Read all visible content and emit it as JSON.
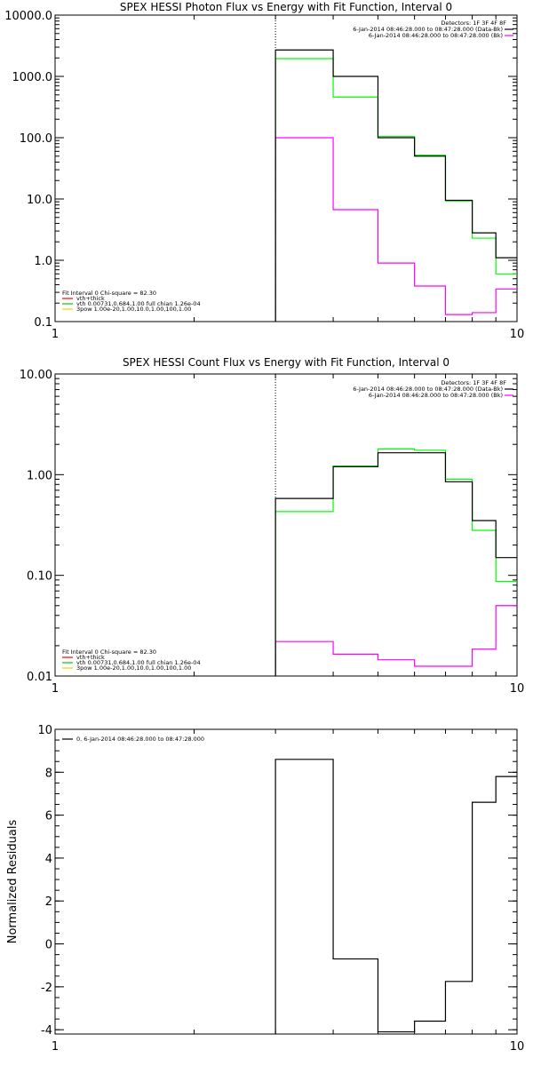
{
  "colors": {
    "data": "#000000",
    "total": "#00ff00",
    "component": "#ff00ff",
    "vth": "#00cc00",
    "thick": "#ffcc00",
    "total_legend": "#ff0000"
  },
  "chart_data": [
    {
      "type": "line",
      "step": true,
      "title": "SPEX HESSI Photon Flux vs Energy with Fit Function, Interval 0",
      "xlabel": "",
      "ylabel": "",
      "x_scale": "log",
      "y_scale": "log",
      "xlim": [
        1,
        10
      ],
      "ylim": [
        0.1,
        10000
      ],
      "x_ticks": [
        {
          "v": 1,
          "label": "1"
        },
        {
          "v": 10,
          "label": "10"
        }
      ],
      "y_ticks": [
        {
          "v": 0.1,
          "label": "0.1"
        },
        {
          "v": 1,
          "label": "1.0"
        },
        {
          "v": 10,
          "label": "10.0"
        },
        {
          "v": 100,
          "label": "100.0"
        },
        {
          "v": 1000,
          "label": "1000.0"
        },
        {
          "v": 10000,
          "label": "10000.0"
        }
      ],
      "bin_edges": [
        3,
        4,
        5,
        6,
        7,
        8,
        9,
        10
      ],
      "vline_x": 3,
      "series": [
        {
          "role": "data",
          "values": [
            2700,
            1000,
            100,
            50,
            9.5,
            2.8,
            1.1
          ]
        },
        {
          "role": "total",
          "values": [
            1950,
            460,
            105,
            52,
            9.3,
            2.3,
            0.6
          ]
        },
        {
          "role": "component",
          "values": [
            100,
            6.7,
            0.9,
            0.38,
            0.13,
            0.14,
            0.34
          ]
        }
      ],
      "header": {
        "detectors": "Detectors: 1F 3F 4F 8F",
        "line1": "6-Jan-2014 08:46:28.000 to 08:47:28.000 (Data-Bk)",
        "line2": "6-Jan-2014 08:46:28.000 to 08:47:28.000 (Bk)"
      },
      "legend": {
        "head": "Fit Interval 0   Chi-square = 82.30",
        "items": [
          {
            "role": "total_legend",
            "label": "vth+thick"
          },
          {
            "role": "vth",
            "label": "vth 0.00731,0.684,1.00  full chian 1.26e-04"
          },
          {
            "role": "thick",
            "label": "3pow 1.00e-20,1.00,10.0,1.00,100,1.00"
          }
        ]
      }
    },
    {
      "type": "line",
      "step": true,
      "title": "SPEX HESSI Count Flux vs Energy with Fit Function, Interval 0",
      "xlabel": "",
      "ylabel": "",
      "x_scale": "log",
      "y_scale": "log",
      "xlim": [
        1,
        10
      ],
      "ylim": [
        0.01,
        10
      ],
      "x_ticks": [
        {
          "v": 1,
          "label": "1"
        },
        {
          "v": 10,
          "label": "10"
        }
      ],
      "y_ticks": [
        {
          "v": 0.01,
          "label": "0.01"
        },
        {
          "v": 0.1,
          "label": "0.10"
        },
        {
          "v": 1,
          "label": "1.00"
        },
        {
          "v": 10,
          "label": "10.00"
        }
      ],
      "bin_edges": [
        3,
        4,
        5,
        6,
        7,
        8,
        9,
        10
      ],
      "vline_x": 3,
      "series": [
        {
          "role": "data",
          "values": [
            0.58,
            1.2,
            1.65,
            1.65,
            0.85,
            0.35,
            0.15
          ]
        },
        {
          "role": "total",
          "values": [
            0.43,
            1.22,
            1.8,
            1.75,
            0.9,
            0.28,
            0.087
          ]
        },
        {
          "role": "component",
          "values": [
            0.022,
            0.0165,
            0.0145,
            0.0125,
            0.0125,
            0.0185,
            0.05
          ]
        }
      ],
      "header": {
        "detectors": "Detectors: 1F 3F 4F 8F",
        "line1": "6-Jan-2014 08:46:28.000 to 08:47:28.000 (Data-Bk)",
        "line2": "6-Jan-2014 08:46:28.000 to 08:47:28.000 (Bk)"
      },
      "legend": {
        "head": "Fit Interval 0   Chi-square = 82.30",
        "items": [
          {
            "role": "total_legend",
            "label": "vth+thick"
          },
          {
            "role": "vth",
            "label": "vth 0.00731,0.684,1.00  full chian 1.26e-04"
          },
          {
            "role": "thick",
            "label": "3pow 1.00e-20,1.00,10.0,1.00,100,1.00"
          }
        ]
      }
    },
    {
      "type": "line",
      "step": true,
      "title": "",
      "xlabel": "",
      "ylabel": "Normalized Residuals",
      "x_scale": "log",
      "y_scale": "linear",
      "xlim": [
        1,
        10
      ],
      "ylim": [
        -4.2,
        10
      ],
      "x_ticks": [
        {
          "v": 1,
          "label": "1"
        },
        {
          "v": 10,
          "label": "10"
        }
      ],
      "y_ticks": [
        {
          "v": -4,
          "label": "-4"
        },
        {
          "v": -2,
          "label": "-2"
        },
        {
          "v": 0,
          "label": "0"
        },
        {
          "v": 2,
          "label": "2"
        },
        {
          "v": 4,
          "label": "4"
        },
        {
          "v": 6,
          "label": "6"
        },
        {
          "v": 8,
          "label": "8"
        },
        {
          "v": 10,
          "label": "10"
        }
      ],
      "bin_edges": [
        3,
        4,
        5,
        6,
        7,
        8,
        9,
        10
      ],
      "vline_x": null,
      "series": [
        {
          "role": "data",
          "values": [
            8.6,
            -0.7,
            -4.1,
            -3.6,
            -1.75,
            6.6,
            7.8
          ]
        }
      ],
      "legend": {
        "head": "",
        "items": [
          {
            "role": "data",
            "label": "0.  6-Jan-2014 08:46:28.000 to 08:47:28.000"
          }
        ]
      }
    }
  ]
}
